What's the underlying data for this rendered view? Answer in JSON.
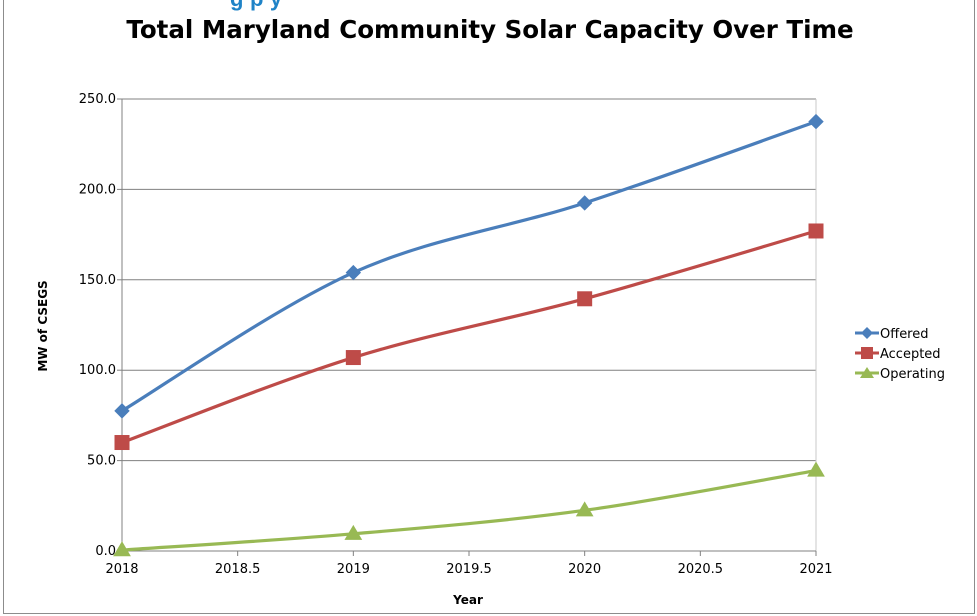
{
  "header": {
    "cutoff_text": "g                  p    y"
  },
  "chart_data": {
    "type": "line",
    "title": "Total Maryland Community Solar Capacity Over Time",
    "xlabel": "Year",
    "ylabel": "MW of CSEGS",
    "x": [
      2018,
      2019,
      2020,
      2021
    ],
    "xlim": [
      2018,
      2021
    ],
    "ylim": [
      0,
      250
    ],
    "xticks": [
      "2018",
      "2018.5",
      "2019",
      "2019.5",
      "2020",
      "2020.5",
      "2021"
    ],
    "yticks": [
      "0.0",
      "50.0",
      "100.0",
      "150.0",
      "200.0",
      "250.0"
    ],
    "grid": "horizontal",
    "legend_position": "right",
    "smooth": true,
    "series": [
      {
        "name": "Offered",
        "values": [
          77.5,
          154.0,
          192.5,
          237.5
        ],
        "color": "#4a7ebb",
        "marker": "diamond"
      },
      {
        "name": "Accepted",
        "values": [
          60.0,
          107.0,
          139.5,
          177.0
        ],
        "color": "#be4b48",
        "marker": "square"
      },
      {
        "name": "Operating",
        "values": [
          0.5,
          9.5,
          22.5,
          44.5
        ],
        "color": "#98b954",
        "marker": "triangle"
      }
    ]
  }
}
